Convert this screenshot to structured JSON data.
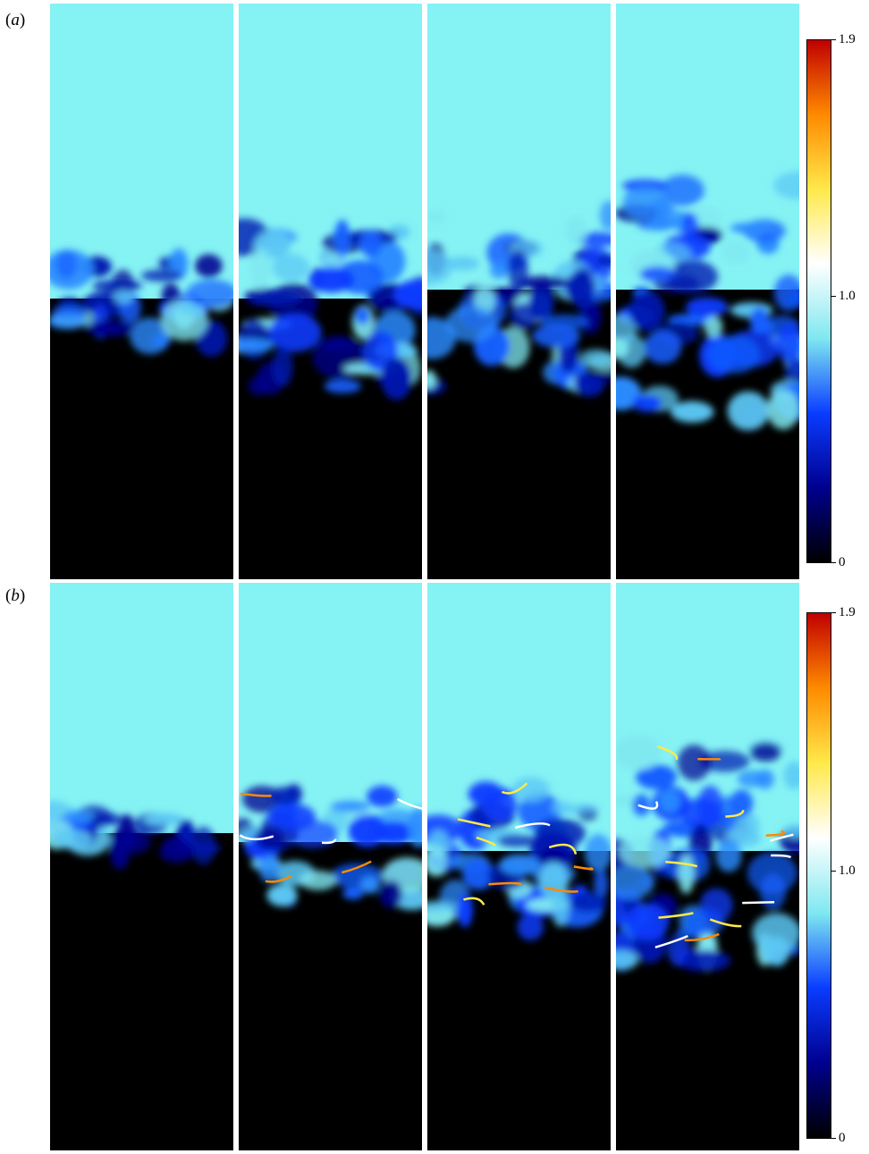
{
  "panels": [
    {
      "label_prefix": "(",
      "label": "a",
      "label_suffix": ")",
      "colorbar": {
        "max": "1.9",
        "mid": "1.0",
        "min": "0"
      }
    },
    {
      "label_prefix": "(",
      "label": "b",
      "label_suffix": ")",
      "colorbar": {
        "max": "1.9",
        "mid": "1.0",
        "min": "0"
      }
    }
  ],
  "colormap": {
    "stops": [
      "#000000",
      "#00008f",
      "#0a3cff",
      "#7fe8f0",
      "#ffffff",
      "#ffe94a",
      "#ff8a00",
      "#c00000"
    ],
    "background_top": "#85f2f4",
    "background_bottom": "#000000"
  }
}
